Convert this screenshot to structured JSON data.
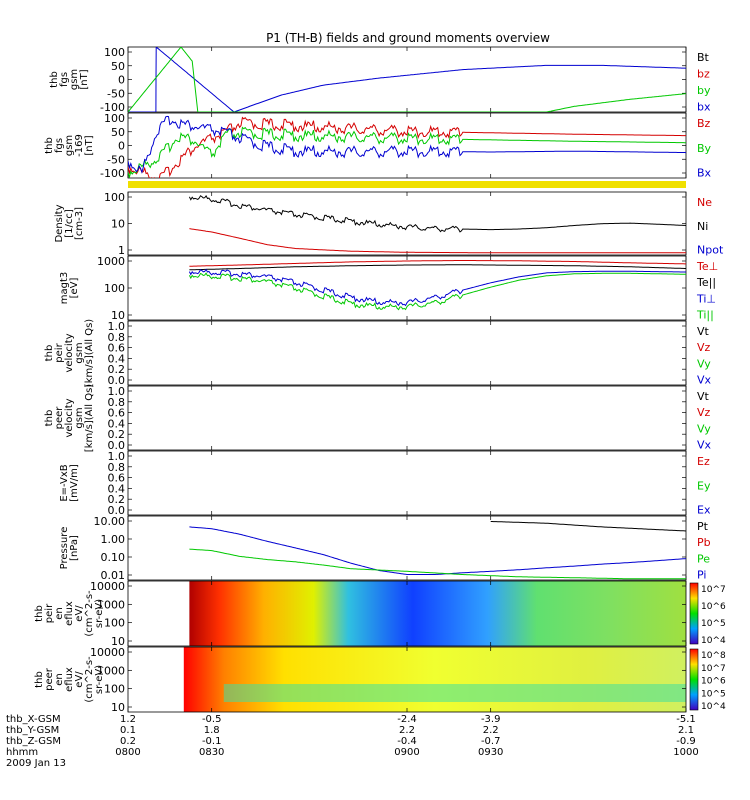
{
  "title": "P1 (TH-B) fields and ground moments overview",
  "colors": {
    "black": "#000000",
    "red": "#d40000",
    "green": "#00c800",
    "blue": "#0000d0",
    "yellow": "#f0e000"
  },
  "chart_data": [
    {
      "type": "line",
      "panel": "fgs",
      "ylabel": [
        "thb",
        "fgs",
        "gsm",
        "[nT]"
      ],
      "yticks": [
        "100",
        "50",
        "0",
        "-50",
        "-100"
      ],
      "ylim": [
        -120,
        110
      ],
      "legend": [
        {
          "name": "Bt",
          "color": "black"
        },
        {
          "name": "bz",
          "color": "red"
        },
        {
          "name": "by",
          "color": "green"
        },
        {
          "name": "bx",
          "color": "blue"
        }
      ],
      "series": [
        {
          "name": "bx",
          "color": "blue",
          "x": [
            800,
            810,
            810.1,
            838,
            845,
            855,
            870,
            890,
            920,
            950,
            970,
            1000
          ],
          "y": [
            -120,
            -120,
            110,
            -120,
            -95,
            -60,
            -25,
            0,
            30,
            45,
            45,
            35
          ]
        },
        {
          "name": "by",
          "color": "green",
          "x": [
            800,
            819,
            823,
            825,
            950,
            960,
            980,
            1000
          ],
          "y": [
            -120,
            110,
            60,
            -120,
            -120,
            -100,
            -75,
            -55
          ]
        }
      ]
    },
    {
      "type": "line",
      "panel": "fgs-dsl",
      "ylabel": [
        "thb",
        "fgs",
        "gsm",
        "-169",
        "[nT]"
      ],
      "yticks": [
        "100",
        "50",
        "0",
        "-50",
        "-100"
      ],
      "ylim": [
        -120,
        110
      ],
      "legend": [
        {
          "name": "Bz",
          "color": "red"
        },
        {
          "name": "By",
          "color": "green"
        },
        {
          "name": "Bx",
          "color": "blue"
        }
      ],
      "series": [
        {
          "name": "Bz",
          "color": "red",
          "x": [
            800,
            805,
            812,
            818,
            824,
            830,
            835,
            840,
            850,
            860,
            880,
            900,
            930,
            960,
            1000
          ],
          "y": [
            -80,
            -100,
            -120,
            -60,
            -10,
            20,
            40,
            75,
            70,
            65,
            55,
            45,
            40,
            35,
            30
          ]
        },
        {
          "name": "By",
          "color": "green",
          "x": [
            800,
            805,
            812,
            818,
            824,
            830,
            835,
            840,
            850,
            860,
            880,
            900,
            930,
            960,
            1000
          ],
          "y": [
            -100,
            -80,
            -40,
            30,
            10,
            -40,
            30,
            40,
            35,
            30,
            25,
            20,
            15,
            10,
            5
          ]
        },
        {
          "name": "Bx",
          "color": "blue",
          "x": [
            800,
            805,
            810,
            815,
            820,
            825,
            830,
            835,
            840,
            850,
            860,
            880,
            900,
            930,
            960,
            1000
          ],
          "y": [
            -60,
            -100,
            40,
            90,
            70,
            60,
            50,
            40,
            20,
            -10,
            -25,
            -28,
            -25,
            -28,
            -25,
            -30
          ]
        }
      ]
    },
    {
      "type": "line",
      "panel": "density",
      "ylabel": [
        "Density",
        "[1/cc]",
        "[cm-3]"
      ],
      "yticks": [
        "100",
        "10",
        "1"
      ],
      "yscale": "log",
      "ylim": [
        0.3,
        250
      ],
      "legend": [
        {
          "name": "Ne",
          "color": "red"
        },
        {
          "name": "Ni",
          "color": "black"
        },
        {
          "name": "Npot",
          "color": "blue"
        }
      ],
      "series": [
        {
          "name": "Ne",
          "color": "red",
          "x": [
            822,
            830,
            840,
            850,
            860,
            880,
            900,
            930,
            960,
            1000
          ],
          "y": [
            5,
            3.5,
            1.8,
            0.9,
            0.6,
            0.45,
            0.4,
            0.38,
            0.38,
            0.38
          ]
        },
        {
          "name": "Ni",
          "color": "black",
          "x": [
            822,
            830,
            840,
            850,
            860,
            870,
            880,
            890,
            900,
            910,
            920,
            930,
            940,
            950,
            960,
            970,
            980,
            990,
            1000
          ],
          "y": [
            150,
            120,
            60,
            35,
            22,
            16,
            11,
            8,
            6,
            5,
            4.8,
            4.5,
            4.8,
            5.5,
            7,
            8.5,
            9,
            8,
            7
          ]
        }
      ]
    },
    {
      "type": "line",
      "panel": "temperature",
      "ylabel": [
        "magt3",
        "[eV]"
      ],
      "yticks": [
        "1000",
        "100",
        "10"
      ],
      "yscale": "log",
      "ylim": [
        8,
        1100
      ],
      "legend": [
        {
          "name": "Te⊥",
          "color": "red"
        },
        {
          "name": "Te||",
          "color": "black"
        },
        {
          "name": "Ti⊥",
          "color": "blue"
        },
        {
          "name": "Ti||",
          "color": "green"
        }
      ],
      "series": [
        {
          "name": "Te⊥",
          "color": "red",
          "x": [
            822,
            840,
            860,
            880,
            900,
            920,
            940,
            960,
            980,
            1000
          ],
          "y": [
            500,
            550,
            620,
            700,
            750,
            780,
            760,
            720,
            650,
            600
          ]
        },
        {
          "name": "Te||",
          "color": "black",
          "x": [
            822,
            840,
            860,
            880,
            900,
            920,
            940,
            960,
            980,
            1000
          ],
          "y": [
            380,
            420,
            480,
            520,
            550,
            560,
            540,
            520,
            480,
            420
          ]
        },
        {
          "name": "Ti⊥",
          "color": "blue",
          "x": [
            822,
            830,
            840,
            850,
            860,
            870,
            880,
            890,
            900,
            910,
            920,
            930,
            940,
            950,
            960,
            970,
            980,
            990,
            1000
          ],
          "y": [
            330,
            320,
            280,
            220,
            140,
            80,
            45,
            32,
            30,
            45,
            80,
            140,
            220,
            300,
            330,
            340,
            340,
            330,
            320
          ]
        },
        {
          "name": "Ti||",
          "color": "green",
          "x": [
            822,
            830,
            840,
            850,
            860,
            870,
            880,
            890,
            900,
            910,
            920,
            930,
            940,
            950,
            960,
            970,
            980,
            990,
            1000
          ],
          "y": [
            250,
            240,
            200,
            150,
            90,
            50,
            28,
            22,
            22,
            30,
            55,
            100,
            170,
            240,
            280,
            290,
            290,
            280,
            270
          ]
        }
      ]
    },
    {
      "type": "line",
      "panel": "peir-velocity",
      "ylabel": [
        "thb",
        "peir",
        "velocity",
        "gsm",
        "[km/s](All Qs)"
      ],
      "yticks": [
        "1.0",
        "0.8",
        "0.6",
        "0.4",
        "0.2",
        "0.0"
      ],
      "ylim": [
        0,
        1
      ],
      "legend": [
        {
          "name": "Vt",
          "color": "black"
        },
        {
          "name": "Vz",
          "color": "red"
        },
        {
          "name": "Vy",
          "color": "green"
        },
        {
          "name": "Vx",
          "color": "blue"
        }
      ],
      "series": []
    },
    {
      "type": "line",
      "panel": "peer-velocity",
      "ylabel": [
        "thb",
        "peer",
        "velocity",
        "gsm",
        "[km/s](All Qs)"
      ],
      "yticks": [
        "1.0",
        "0.8",
        "0.6",
        "0.4",
        "0.2",
        "0.0"
      ],
      "ylim": [
        0,
        1
      ],
      "legend": [
        {
          "name": "Vt",
          "color": "black"
        },
        {
          "name": "Vz",
          "color": "red"
        },
        {
          "name": "Vy",
          "color": "green"
        },
        {
          "name": "Vx",
          "color": "blue"
        }
      ],
      "series": []
    },
    {
      "type": "line",
      "panel": "efield",
      "ylabel": [
        "E=-VxB",
        "[mV/m]"
      ],
      "yticks": [
        "1.0",
        "0.8",
        "0.6",
        "0.4",
        "0.2",
        "0.0"
      ],
      "ylim": [
        0,
        1
      ],
      "legend": [
        {
          "name": "Ez",
          "color": "red"
        },
        {
          "name": "Ey",
          "color": "green"
        },
        {
          "name": "Ex",
          "color": "blue"
        }
      ],
      "series": []
    },
    {
      "type": "line",
      "panel": "pressure",
      "ylabel": [
        "Pressure",
        "[nPa]"
      ],
      "yticks": [
        "10.00",
        "1.00",
        "0.10",
        "0.01"
      ],
      "yscale": "log",
      "ylim": [
        0.006,
        20
      ],
      "legend": [
        {
          "name": "Pt",
          "color": "black"
        },
        {
          "name": "Pb",
          "color": "red"
        },
        {
          "name": "Pe",
          "color": "green"
        },
        {
          "name": "Pi",
          "color": "blue"
        }
      ],
      "series": [
        {
          "name": "Pt",
          "color": "black",
          "x": [
            930,
            950,
            970,
            1000
          ],
          "y": [
            10,
            8,
            5,
            3
          ]
        },
        {
          "name": "Pi",
          "color": "blue",
          "x": [
            822,
            830,
            840,
            850,
            860,
            870,
            880,
            890,
            900,
            910,
            920,
            930,
            940,
            950,
            960,
            970,
            980,
            990,
            1000
          ],
          "y": [
            5,
            4,
            2,
            0.8,
            0.35,
            0.15,
            0.05,
            0.02,
            0.012,
            0.012,
            0.015,
            0.018,
            0.022,
            0.028,
            0.035,
            0.045,
            0.055,
            0.07,
            0.09
          ]
        },
        {
          "name": "Pe",
          "color": "green",
          "x": [
            822,
            830,
            840,
            850,
            860,
            870,
            880,
            900,
            920,
            940,
            960,
            980,
            1000
          ],
          "y": [
            0.3,
            0.25,
            0.12,
            0.08,
            0.06,
            0.04,
            0.025,
            0.018,
            0.012,
            0.009,
            0.008,
            0.007,
            0.007
          ]
        }
      ]
    },
    {
      "type": "heatmap",
      "panel": "peir-spectrogram",
      "ylabel": [
        "thb",
        "peir",
        "en",
        "eflux",
        "eV/",
        "(cm^2-s-",
        "sr-eV)"
      ],
      "yticks": [
        "10000",
        "1000",
        "100",
        "10"
      ],
      "yscale": "log",
      "colorbar": [
        "10^7",
        "10^6",
        "10^5",
        "10^4"
      ],
      "data_start": 822
    },
    {
      "type": "heatmap",
      "panel": "peer-spectrogram",
      "ylabel": [
        "thb",
        "peer",
        "en",
        "eflux",
        "eV/",
        "(cm^2-s-",
        "sr-eV)"
      ],
      "yticks": [
        "10000",
        "1000",
        "100",
        "10"
      ],
      "yscale": "log",
      "colorbar": [
        "10^8",
        "10^7",
        "10^6",
        "10^5",
        "10^4"
      ],
      "data_start": 820
    }
  ],
  "xaxis": {
    "rows": [
      {
        "label": "thb_X-GSM",
        "values": [
          "1.2",
          "-0.5",
          "-2.4",
          "-3.9",
          "-5.1"
        ]
      },
      {
        "label": "thb_Y-GSM",
        "values": [
          "0.1",
          "1.8",
          "2.2",
          "2.2",
          "2.1"
        ]
      },
      {
        "label": "thb_Z-GSM",
        "values": [
          "0.2",
          "-0.1",
          "-0.4",
          "-0.7",
          "-0.9"
        ]
      },
      {
        "label": "hhmm",
        "values": [
          "0800",
          "0830",
          "0900",
          "0930",
          "1000"
        ]
      }
    ],
    "date": "2009 Jan 13",
    "tick_times": [
      800,
      830,
      900,
      930,
      1000
    ]
  }
}
